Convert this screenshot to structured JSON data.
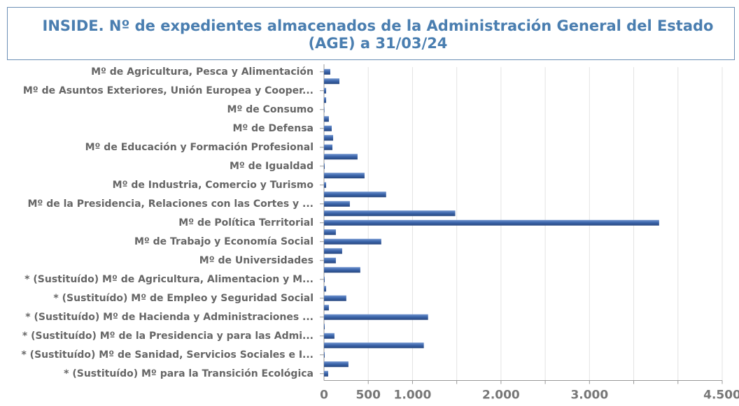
{
  "chart_data": {
    "type": "bar",
    "orientation": "horizontal",
    "title_lines": [
      "INSIDE. Nº de expedientes almacenados de la Administración General del Estado",
      "(AGE) a 31/03/24"
    ],
    "categories": [
      "Mº de Agricultura, Pesca y Alimentación",
      null,
      "Mº de Asuntos Exteriores, Unión Europea y Cooper...",
      null,
      "Mº de Consumo",
      null,
      "Mº de Defensa",
      null,
      "Mº de Educación y Formación Profesional",
      null,
      "Mº de Igualdad",
      null,
      "Mº de Industria, Comercio y Turismo",
      null,
      "Mº de la Presidencia, Relaciones con las Cortes y ...",
      null,
      "Mº de Política Territorial",
      null,
      "Mº de Trabajo y Economía Social",
      null,
      "Mº de Universidades",
      null,
      "* (Sustituído) Mº de Agricultura, Alimentacion y M...",
      null,
      "* (Sustituído) Mº de Empleo y Seguridad Social",
      null,
      "* (Sustituído) Mº de Hacienda y Administraciones ...",
      null,
      "* (Sustituído) Mº de la Presidencia y para las Admi...",
      null,
      "* (Sustituído) Mº de Sanidad, Servicios Sociales e I...",
      null,
      "* (Sustituído) Mº para la Transición Ecológica"
    ],
    "values": [
      71,
      174,
      24,
      24,
      5,
      55,
      87,
      103,
      95,
      379,
      8,
      458,
      24,
      702,
      292,
      1483,
      3787,
      134,
      647,
      205,
      134,
      410,
      8,
      24,
      252,
      55,
      1176,
      8,
      118,
      1128,
      8,
      276,
      47
    ],
    "color": "#3a63a8",
    "xlim": [
      0,
      4500
    ],
    "xticks": [
      0,
      500,
      {
        "value": 1000,
        "label": "1.000"
      },
      {
        "value": 2000,
        "label": "2.000"
      },
      {
        "value": 3000,
        "label": "3.000"
      },
      {
        "value": 4500,
        "label": "4.500"
      }
    ],
    "xgrid": [
      500,
      1000,
      1500,
      2000,
      2500,
      3000,
      3500,
      4000,
      4500
    ],
    "grid": true
  }
}
